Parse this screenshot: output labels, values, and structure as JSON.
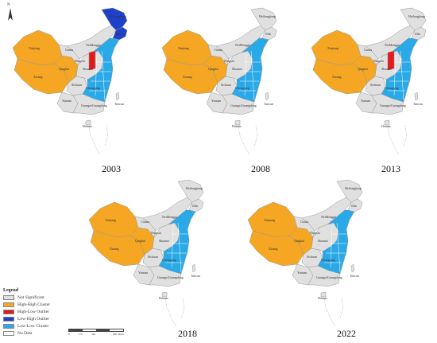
{
  "north_label": "N",
  "legend": {
    "title": "Legend",
    "items": [
      {
        "label": "Not Significant",
        "color": "#e0e0e0"
      },
      {
        "label": "High-High Cluster",
        "color": "#f5a623"
      },
      {
        "label": "High-Low Outlier",
        "color": "#e31a1c"
      },
      {
        "label": "Low-High Outlier",
        "color": "#1f40c8"
      },
      {
        "label": "Low-Low Cluster",
        "color": "#29a9e8"
      },
      {
        "label": "No Data",
        "color": "#ffffff"
      }
    ]
  },
  "scale": {
    "ticks": [
      "0",
      "170",
      "340",
      "",
      "680 Miles"
    ]
  },
  "colors": {
    "not_significant": "#e0e0e0",
    "high_high": "#f5a623",
    "high_low": "#e31a1c",
    "low_high": "#1f40c8",
    "low_low": "#29a9e8",
    "border": "#ffffff",
    "outline": "#999999"
  },
  "province_labels": {
    "xinjiang": "Xinjiang",
    "xizang": "Xizang",
    "qinghai": "Qinghai",
    "gansu": "Gansu",
    "neimenggu": "NeiMenggu",
    "heilongjiang": "Heilongjiang",
    "jilin": "Jilin",
    "sichuan": "Sichuan",
    "yunnan": "Yunnan",
    "guangxi": "Guangxi",
    "guangdong": "Guangdong",
    "hainan": "Hainan",
    "taiwan": "Taiwan",
    "chongqing": "Chongqing",
    "ningxia": "Ningxia",
    "shaanxi": "Shaanxi"
  },
  "maps": [
    {
      "year": "2003",
      "high_low_center": true,
      "low_high_northeast": true
    },
    {
      "year": "2008",
      "high_low_center": false,
      "low_high_northeast": false
    },
    {
      "year": "2013",
      "high_low_center": true,
      "low_high_northeast": false
    },
    {
      "year": "2018",
      "high_low_center": false,
      "low_high_northeast": false
    },
    {
      "year": "2022",
      "high_low_center": false,
      "low_high_northeast": false
    }
  ]
}
